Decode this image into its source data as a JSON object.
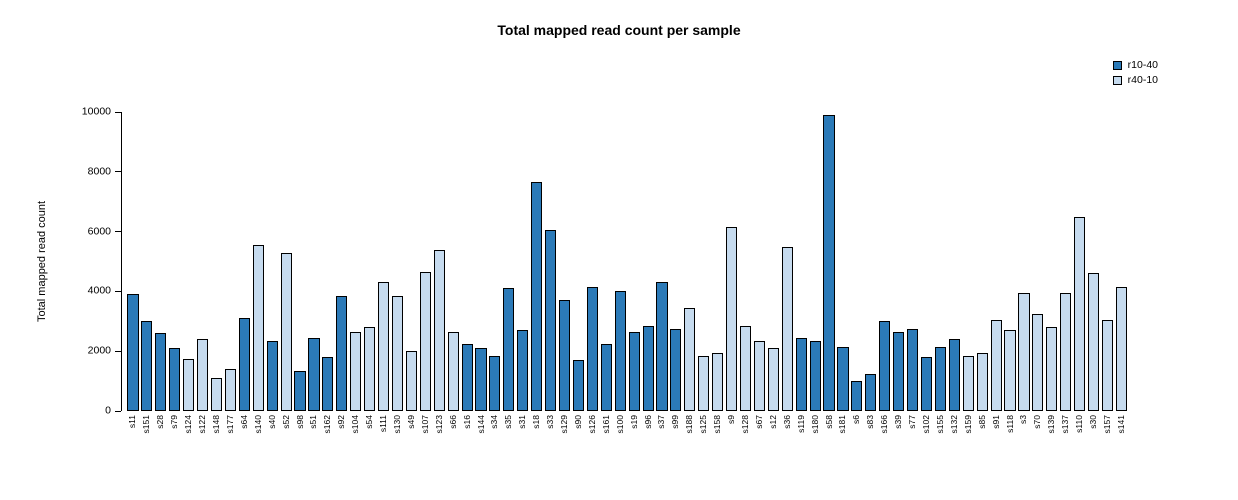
{
  "chart_data": {
    "type": "bar",
    "title": "Total mapped read count per sample",
    "xlabel": "",
    "ylabel": "Total mapped read count",
    "ylim": [
      0,
      10000
    ],
    "yticks": [
      0,
      2000,
      4000,
      6000,
      8000,
      10000
    ],
    "grid": false,
    "legend_position": "top-right",
    "series": [
      {
        "name": "r10-40",
        "color": "#2b7ab8"
      },
      {
        "name": "r40-10",
        "color": "#c6dbef"
      }
    ],
    "bar_border_color": "#000000",
    "categories": [
      "s11",
      "s151",
      "s28",
      "s79",
      "s124",
      "s122",
      "s148",
      "s177",
      "s64",
      "s140",
      "s40",
      "s52",
      "s98",
      "s51",
      "s162",
      "s92",
      "s104",
      "s54",
      "s111",
      "s130",
      "s49",
      "s107",
      "s123",
      "s66",
      "s16",
      "s144",
      "s34",
      "s35",
      "s31",
      "s18",
      "s33",
      "s129",
      "s90",
      "s126",
      "s161",
      "s100",
      "s19",
      "s96",
      "s37",
      "s99",
      "s188",
      "s125",
      "s158",
      "s9",
      "s128",
      "s67",
      "s12",
      "s36",
      "s119",
      "s180",
      "s58",
      "s181",
      "s6",
      "s83",
      "s166",
      "s39",
      "s77",
      "s102",
      "s155",
      "s132",
      "s159",
      "s85",
      "s91",
      "s118",
      "s3",
      "s70",
      "s139",
      "s137",
      "s110",
      "s30",
      "s157",
      "s141"
    ],
    "values": [
      3900,
      3000,
      2600,
      2100,
      1750,
      2400,
      1100,
      1400,
      3100,
      5550,
      2350,
      5300,
      1350,
      2450,
      1800,
      3850,
      2650,
      2800,
      4300,
      3850,
      2000,
      4650,
      5400,
      2650,
      2250,
      2100,
      1850,
      4100,
      2700,
      7650,
      6050,
      3700,
      1700,
      4150,
      2250,
      4000,
      2650,
      2850,
      4300,
      2750,
      3450,
      1850,
      1950,
      6150,
      2850,
      2350,
      2100,
      5500,
      2450,
      2350,
      9900,
      2150,
      1000,
      1250,
      3000,
      2650,
      2750,
      1800,
      2150,
      2400,
      1850,
      1950,
      3050,
      2700,
      3950,
      3250,
      2800,
      3950,
      6500,
      4600,
      3050,
      4150
    ],
    "series_index": [
      0,
      0,
      0,
      0,
      1,
      1,
      1,
      1,
      0,
      1,
      0,
      1,
      0,
      0,
      0,
      0,
      1,
      1,
      1,
      1,
      1,
      1,
      1,
      1,
      0,
      0,
      0,
      0,
      0,
      0,
      0,
      0,
      0,
      0,
      0,
      0,
      0,
      0,
      0,
      0,
      1,
      1,
      1,
      1,
      1,
      1,
      1,
      1,
      0,
      0,
      0,
      0,
      0,
      0,
      0,
      0,
      0,
      0,
      0,
      0,
      1,
      1,
      1,
      1,
      1,
      1,
      1,
      1,
      1,
      1,
      1,
      1
    ]
  }
}
